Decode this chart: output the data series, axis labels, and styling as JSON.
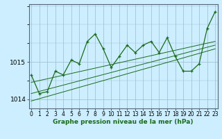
{
  "xlabel": "Graphe pression niveau de la mer (hPa)",
  "background_color": "#cceeff",
  "plot_bg_color": "#cceeff",
  "grid_color": "#99bbcc",
  "line_color": "#1a6b1a",
  "x_values": [
    0,
    1,
    2,
    3,
    4,
    5,
    6,
    7,
    8,
    9,
    10,
    11,
    12,
    13,
    14,
    15,
    16,
    17,
    18,
    19,
    20,
    21,
    22,
    23
  ],
  "main_line": [
    1014.65,
    1014.15,
    1014.2,
    1014.75,
    1014.65,
    1015.05,
    1014.95,
    1015.55,
    1015.75,
    1015.35,
    1014.85,
    1015.15,
    1015.45,
    1015.25,
    1015.45,
    1015.55,
    1015.25,
    1015.65,
    1015.15,
    1014.75,
    1014.75,
    1014.95,
    1015.9,
    1016.35
  ],
  "trend1_x": [
    0,
    23
  ],
  "trend1_y": [
    1014.45,
    1015.55
  ],
  "trend2_x": [
    0,
    23
  ],
  "trend2_y": [
    1014.15,
    1015.45
  ],
  "trend3_x": [
    0,
    23
  ],
  "trend3_y": [
    1013.95,
    1015.35
  ],
  "ylim": [
    1013.75,
    1016.55
  ],
  "yticks": [
    1014.0,
    1015.0
  ],
  "xticks": [
    0,
    1,
    2,
    3,
    4,
    5,
    6,
    7,
    8,
    9,
    10,
    11,
    12,
    13,
    14,
    15,
    16,
    17,
    18,
    19,
    20,
    21,
    22,
    23
  ],
  "tick_fontsize": 5.5,
  "ytick_fontsize": 6.5,
  "xlabel_fontsize": 6.5
}
